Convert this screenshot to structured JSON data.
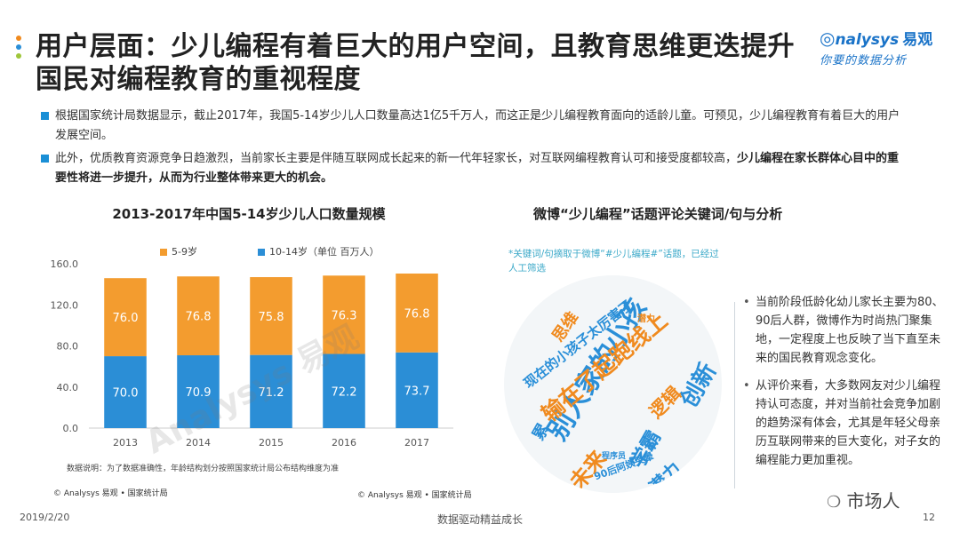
{
  "header": {
    "title_line1": "用户层面：少儿编程有着巨大的用户空间，且教育思维更迭提升",
    "title_line2": "国民对编程教育的重视程度",
    "logo_main": "nalysys",
    "logo_cn": "易观",
    "logo_sub": "你要的数据分析",
    "dot_colors": [
      "#f08a1e",
      "#2a8fd8",
      "#9fc63a"
    ]
  },
  "bullets": [
    {
      "text": "根据国家统计局数据显示，截止2017年，我国5-14岁少儿人口数量高达1亿5千万人，而这正是少儿编程教育面向的适龄儿童。可预见，少儿编程教育有着巨大的用户发展空间。",
      "bold": ""
    },
    {
      "text": "此外，优质教育资源竞争日趋激烈，当前家长主要是伴随互联网成长起来的新一代年轻家长，对互联网编程教育认可和接受度都较高，",
      "bold": "少儿编程在家长群体心目中的重要性将进一步提升，从而为行业整体带来更大的机会。"
    }
  ],
  "left_chart": {
    "title": "2013-2017年中国5-14岁少儿人口数量规模",
    "legend_1": "5-9岁",
    "legend_2": "10-14岁（单位 百万人）",
    "note": "数据说明：为了数据准确性，年龄结构划分按照国家统计局公布结构维度为准",
    "source": "© Analysys 易观 • 国家统计局",
    "watermark": "Analysys 易观"
  },
  "chart_data": {
    "type": "bar",
    "stacked": true,
    "categories": [
      "2013",
      "2014",
      "2015",
      "2016",
      "2017"
    ],
    "series": [
      {
        "name": "10-14岁",
        "values": [
          70.0,
          70.9,
          71.2,
          72.2,
          73.7
        ],
        "color": "#2b8ed6"
      },
      {
        "name": "5-9岁",
        "values": [
          76.0,
          76.8,
          75.8,
          76.3,
          76.8
        ],
        "color": "#f39c2f"
      }
    ],
    "yticks": [
      "0.0",
      "40.0",
      "80.0",
      "120.0",
      "160.0"
    ],
    "ylim": [
      0,
      160
    ],
    "grid": false,
    "legend_position": "top-left"
  },
  "right_panel": {
    "title": "微博“少儿编程”话题评论关键词/句与分析",
    "note": "*关键词/句摘取于微博“#少儿编程#”话题，已经过人工筛选",
    "source": "© Analysys 易观 • 国家统计局",
    "points": [
      "当前阶段低龄化幼儿家长主要为80、90后人群，微博作为时尚热门聚集地，一定程度上也反映了当下直至未来的国民教育观念变化。",
      "从评价来看，大多数网友对少儿编程持认可态度，并对当前社会竞争加剧的趋势深有体会，尤其是年轻父母亲历互联网带来的巨大变化，对子女的编程能力更加重视。"
    ],
    "keywords": [
      {
        "text": "别人家的小孩",
        "color": "#2a8fd8"
      },
      {
        "text": "输在了起跑线上",
        "color": "#f08a1e"
      },
      {
        "text": "现在的小孩子太厉害了",
        "color": "#2a8fd8"
      },
      {
        "text": "学霸",
        "color": "#2a8fd8"
      },
      {
        "text": "创新",
        "color": "#2a8fd8"
      },
      {
        "text": "未来",
        "color": "#f08a1e"
      },
      {
        "text": "潜力",
        "color": "#2a8fd8"
      },
      {
        "text": "逻辑",
        "color": "#f08a1e"
      },
      {
        "text": "思维",
        "color": "#f08a1e"
      },
      {
        "text": "累",
        "color": "#2a8fd8"
      },
      {
        "text": "90后阿姨哭晕",
        "color": "#2a8fd8"
      },
      {
        "text": "程序员",
        "color": "#2a8fd8"
      },
      {
        "text": "潜力",
        "color": "#f08a1e"
      }
    ]
  },
  "footer": {
    "date": "2019/2/20",
    "tagline": "数据驱动精益成长",
    "page": "12",
    "wechat": "市场人"
  }
}
